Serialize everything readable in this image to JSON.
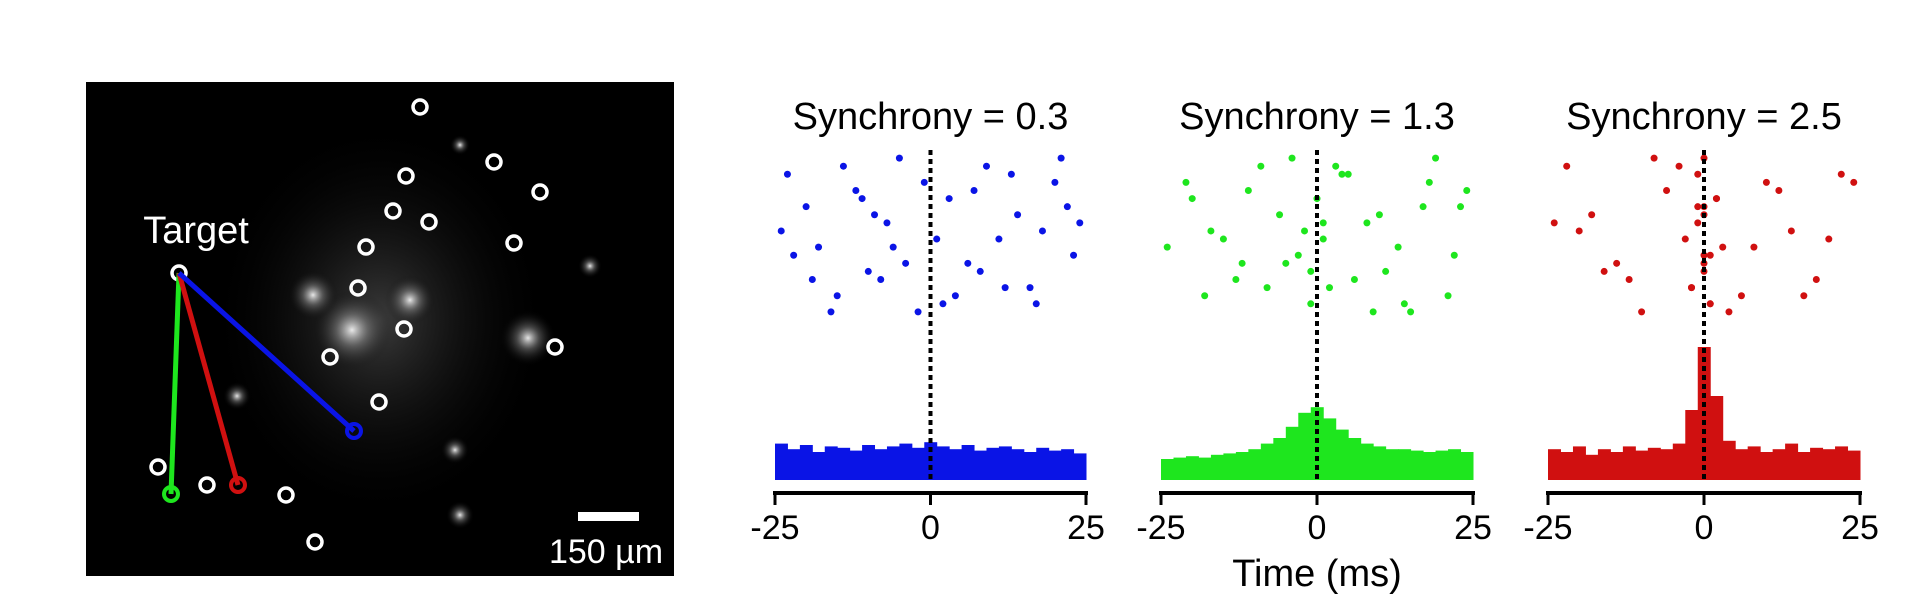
{
  "image": {
    "label": "Target",
    "scale_bar": "150 µm"
  },
  "chart_data": [
    {
      "type": "raster",
      "title": "Synchrony = 0.3",
      "color": "#0a14e6",
      "xlim": [
        -25,
        25
      ],
      "xticks": [
        -25,
        0,
        25
      ],
      "raster_ylim": [
        0,
        21
      ],
      "ylim": [
        0,
        100
      ],
      "raster": {
        "x": [
          -23,
          -20,
          -18,
          -15,
          -12,
          -10,
          -7,
          -5,
          -2,
          1,
          3,
          6,
          9,
          12,
          14,
          17,
          20,
          23,
          -24,
          -19,
          -14,
          -9,
          -4,
          2,
          7,
          11,
          16,
          21,
          24,
          -22,
          -16,
          -11,
          -6,
          -1,
          4,
          8,
          13,
          18,
          22,
          -8
        ],
        "y": [
          3,
          7,
          12,
          18,
          5,
          15,
          9,
          1,
          20,
          11,
          6,
          14,
          2,
          17,
          8,
          19,
          4,
          13,
          10,
          16,
          2,
          8,
          14,
          19,
          5,
          11,
          17,
          1,
          9,
          13,
          20,
          6,
          12,
          4,
          18,
          15,
          3,
          10,
          7,
          16
        ]
      },
      "bins": [
        -25,
        -23,
        -21,
        -19,
        -17,
        -15,
        -13,
        -11,
        -9,
        -7,
        -5,
        -3,
        -1,
        1,
        3,
        5,
        7,
        9,
        11,
        13,
        15,
        17,
        19,
        21,
        23,
        25
      ],
      "counts": [
        26,
        22,
        25,
        20,
        24,
        23,
        21,
        25,
        22,
        24,
        26,
        23,
        27,
        24,
        22,
        25,
        21,
        23,
        24,
        22,
        20,
        23,
        21,
        22,
        19
      ]
    },
    {
      "type": "raster",
      "title": "Synchrony = 1.3",
      "color": "#1ee61e",
      "xlabel": "Time (ms)",
      "xlim": [
        -25,
        25
      ],
      "xticks": [
        -25,
        0,
        25
      ],
      "raster_ylim": [
        0,
        21
      ],
      "ylim": [
        0,
        100
      ],
      "raster": {
        "x": [
          -21,
          -17,
          -13,
          -9,
          -6,
          -3,
          -1,
          0,
          1,
          2,
          4,
          8,
          11,
          15,
          19,
          23,
          -24,
          -18,
          -11,
          -5,
          -2,
          3,
          6,
          10,
          14,
          18,
          22,
          -20,
          -15,
          -8,
          -4,
          -1,
          1,
          5,
          9,
          13,
          17,
          21,
          24,
          -12
        ],
        "y": [
          4,
          10,
          16,
          2,
          8,
          13,
          19,
          6,
          11,
          17,
          3,
          9,
          15,
          20,
          1,
          7,
          12,
          18,
          5,
          14,
          10,
          2,
          16,
          8,
          19,
          4,
          13,
          6,
          11,
          17,
          1,
          15,
          9,
          3,
          20,
          12,
          7,
          18,
          5,
          14
        ]
      },
      "bins": [
        -25,
        -23,
        -21,
        -19,
        -17,
        -15,
        -13,
        -11,
        -9,
        -7,
        -5,
        -3,
        -1,
        1,
        3,
        5,
        7,
        9,
        11,
        13,
        15,
        17,
        19,
        21,
        23,
        25
      ],
      "counts": [
        15,
        16,
        17,
        16,
        18,
        19,
        20,
        22,
        26,
        30,
        38,
        48,
        52,
        44,
        36,
        30,
        26,
        24,
        22,
        22,
        21,
        20,
        21,
        22,
        20
      ]
    },
    {
      "type": "raster",
      "title": "Synchrony = 2.5",
      "color": "#d01010",
      "xlim": [
        -25,
        25
      ],
      "xticks": [
        -25,
        0,
        25
      ],
      "raster_ylim": [
        0,
        21
      ],
      "ylim": [
        0,
        100
      ],
      "raster": {
        "x": [
          -22,
          -18,
          -14,
          -10,
          -6,
          -3,
          -2,
          -1,
          -1,
          0,
          0,
          0,
          1,
          1,
          2,
          3,
          6,
          10,
          14,
          18,
          22,
          -24,
          -16,
          -8,
          -1,
          0,
          1,
          2,
          8,
          16,
          24,
          -20,
          -12,
          -4,
          0,
          0,
          4,
          12,
          20,
          -2
        ],
        "y": [
          2,
          8,
          14,
          20,
          5,
          11,
          17,
          3,
          9,
          15,
          1,
          7,
          13,
          19,
          6,
          12,
          18,
          4,
          10,
          16,
          3,
          9,
          15,
          1,
          7,
          13,
          19,
          6,
          12,
          18,
          4,
          10,
          16,
          2,
          8,
          14,
          20,
          5,
          11,
          17
        ]
      },
      "bins": [
        -25,
        -23,
        -21,
        -19,
        -17,
        -15,
        -13,
        -11,
        -9,
        -7,
        -5,
        -3,
        -1,
        1,
        3,
        5,
        7,
        9,
        11,
        13,
        15,
        17,
        19,
        21,
        23,
        25
      ],
      "counts": [
        22,
        20,
        24,
        18,
        22,
        20,
        24,
        21,
        23,
        22,
        26,
        50,
        95,
        60,
        28,
        22,
        24,
        20,
        22,
        26,
        20,
        23,
        22,
        24,
        21
      ]
    }
  ]
}
